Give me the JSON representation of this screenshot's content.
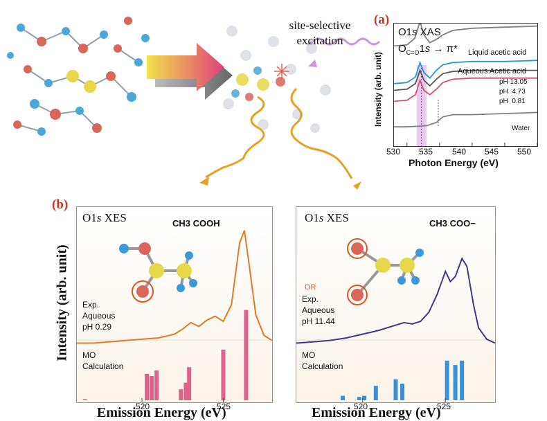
{
  "schematic": {
    "excitation_label_line1": "site-selective",
    "excitation_label_line2": "excitation"
  },
  "panel_a": {
    "letter": "(a)",
    "title_prefix": "O1",
    "title_italic": "s",
    "title_suffix": " XAS",
    "transition_prefix": "O",
    "transition_sub": "C=O",
    "transition_mid": "1",
    "transition_italic": "s",
    "transition_arrow": " → π*",
    "ylabel": "Intensity (arb. unit)",
    "xlabel": "Photon Energy (eV)",
    "x_ticks": [
      "530",
      "535",
      "540",
      "545",
      "550"
    ],
    "labels": {
      "liquid": "Liquid acetic acid",
      "aqueous": "Aqueous Acetic acid",
      "ph1": "pH 13.05",
      "ph2": "pH  4.73",
      "ph3": "pH  0.81",
      "water": "Water"
    },
    "highlight_color": "#c98bd6"
  },
  "panel_b": {
    "letter": "(b)",
    "ylabel": "Intensity (arb. unit)",
    "left": {
      "title_prefix": "O1",
      "title_italic": "s",
      "title_suffix": " XES",
      "molecule_label": "CH3 COOH",
      "exp_line1": "Exp.",
      "exp_line2": "Aqueous",
      "exp_line3": "pH 0.29",
      "mo_line1": "MO",
      "mo_line2": "Calculation",
      "xlabel": "Emission Energy (eV)",
      "x_ticks": [
        "520",
        "525"
      ],
      "curve_color": "#e07b22",
      "bar_color": "#e0628c"
    },
    "right": {
      "title_prefix": "O1",
      "title_italic": "s",
      "title_suffix": " XES",
      "molecule_label": "CH3 COO−",
      "or_label": "OR",
      "exp_line1": "Exp.",
      "exp_line2": "Aqueous",
      "exp_line3": "pH 11.44",
      "mo_line1": "MO",
      "mo_line2": "Calculation",
      "xlabel": "Emission Energy (eV)",
      "x_ticks": [
        "520",
        "525"
      ],
      "curve_color": "#3a3a8c",
      "bar_color": "#3a8fd6"
    }
  },
  "chart_data": [
    {
      "type": "line",
      "title": "O1s XAS",
      "xlabel": "Photon Energy (eV)",
      "ylabel": "Intensity (arb. unit)",
      "xlim": [
        528,
        550
      ],
      "series": [
        {
          "name": "Liquid acetic acid",
          "color": "#808080",
          "x": [
            528,
            530,
            531.2,
            532,
            532.6,
            533.5,
            534.5,
            535.5,
            537,
            540,
            545,
            550
          ],
          "y": [
            0.86,
            0.87,
            0.93,
            1.08,
            0.96,
            0.89,
            0.92,
            0.96,
            1.0,
            1.02,
            1.03,
            1.04
          ]
        },
        {
          "name": "pH 13.05",
          "color": "#1f9ad6",
          "x": [
            528,
            530,
            531.3,
            532,
            532.6,
            533.5,
            534.5,
            535.5,
            537,
            540,
            545,
            550
          ],
          "y": [
            0.52,
            0.53,
            0.58,
            0.71,
            0.62,
            0.57,
            0.64,
            0.69,
            0.71,
            0.72,
            0.72,
            0.73
          ]
        },
        {
          "name": "pH  4.73",
          "color": "#555555",
          "x": [
            528,
            530,
            531.3,
            532,
            532.6,
            533.5,
            534.5,
            535.5,
            537,
            540,
            545,
            550
          ],
          "y": [
            0.46,
            0.47,
            0.52,
            0.64,
            0.55,
            0.5,
            0.56,
            0.61,
            0.63,
            0.64,
            0.64,
            0.64
          ]
        },
        {
          "name": "pH  0.81",
          "color": "#d94f6e",
          "x": [
            528,
            530,
            531.3,
            532,
            532.6,
            533.5,
            534.5,
            535.5,
            537,
            540,
            545,
            550
          ],
          "y": [
            0.36,
            0.37,
            0.42,
            0.55,
            0.46,
            0.42,
            0.47,
            0.53,
            0.56,
            0.57,
            0.57,
            0.57
          ]
        },
        {
          "name": "Water",
          "color": "#808080",
          "x": [
            528,
            530,
            533,
            534.5,
            535.5,
            537,
            540,
            545,
            550
          ],
          "y": [
            0.13,
            0.13,
            0.14,
            0.17,
            0.22,
            0.24,
            0.24,
            0.25,
            0.26
          ]
        }
      ],
      "highlight_x": [
        531.5,
        533
      ]
    },
    {
      "type": "line",
      "title": "O1s XES CH3 COOH",
      "xlabel": "Emission Energy (eV)",
      "ylabel": "Intensity (arb. unit)",
      "xlim": [
        516,
        528
      ],
      "series": [
        {
          "name": "Exp. Aqueous pH 0.29",
          "x": [
            516,
            517,
            518,
            519,
            520,
            521,
            522,
            522.5,
            523,
            523.5,
            524,
            524.5,
            525,
            525.5,
            526,
            526.3,
            526.6,
            527,
            527.5,
            528
          ],
          "y": [
            0.1,
            0.1,
            0.11,
            0.12,
            0.13,
            0.14,
            0.17,
            0.21,
            0.26,
            0.23,
            0.28,
            0.31,
            0.27,
            0.4,
            0.88,
            0.98,
            0.7,
            0.32,
            0.16,
            0.12
          ]
        }
      ],
      "mo_bars": {
        "x": [
          516.5,
          520.3,
          520.6,
          520.9,
          522.4,
          522.7,
          522.9,
          525.0,
          526.4
        ],
        "y": [
          0.01,
          0.24,
          0.22,
          0.27,
          0.1,
          0.16,
          0.3,
          0.46,
          0.82
        ]
      }
    },
    {
      "type": "line",
      "title": "O1s XES CH3 COO−",
      "xlabel": "Emission Energy (eV)",
      "ylabel": "Intensity (arb. unit)",
      "xlim": [
        516,
        528
      ],
      "series": [
        {
          "name": "Exp. Aqueous pH 11.44",
          "x": [
            516,
            517,
            518,
            519,
            520,
            521,
            522,
            522.5,
            523,
            523.5,
            524,
            524.5,
            525,
            525.3,
            525.6,
            526,
            526.3,
            526.7,
            527,
            527.5,
            528
          ],
          "y": [
            0.1,
            0.11,
            0.12,
            0.14,
            0.17,
            0.2,
            0.24,
            0.26,
            0.25,
            0.27,
            0.34,
            0.48,
            0.66,
            0.58,
            0.62,
            0.76,
            0.7,
            0.4,
            0.22,
            0.13,
            0.1
          ]
        }
      ],
      "mo_bars": {
        "x": [
          518.8,
          519.8,
          520.1,
          520.8,
          522.0,
          522.4,
          525.1,
          525.6,
          526.0
        ],
        "y": [
          0.04,
          0.03,
          0.04,
          0.13,
          0.19,
          0.15,
          0.36,
          0.32,
          0.36
        ]
      }
    }
  ]
}
